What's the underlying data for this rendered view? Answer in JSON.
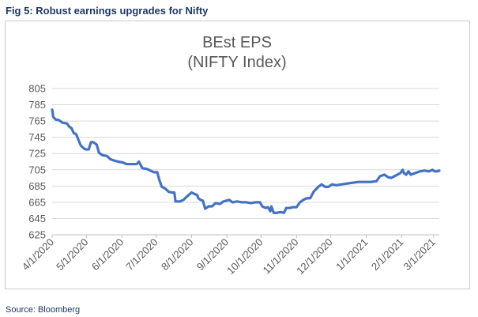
{
  "figure_title": "Fig 5: Robust earnings upgrades for Nifty",
  "source": "Source: Bloomberg",
  "chart_data": {
    "type": "line",
    "title": "BEst EPS",
    "subtitle": "(NIFTY Index)",
    "xlabel": "",
    "ylabel": "",
    "ylim": [
      625,
      805
    ],
    "y_ticks": [
      625,
      645,
      665,
      685,
      705,
      725,
      745,
      765,
      785,
      805
    ],
    "x_ticks": [
      "4/1/2020",
      "5/1/2020",
      "6/1/2020",
      "7/1/2020",
      "8/1/2020",
      "9/1/2020",
      "10/1/2020",
      "11/1/2020",
      "12/1/2020",
      "1/1/2021",
      "2/1/2021",
      "3/1/2021"
    ],
    "grid": "horizontal",
    "line_color": "#4472c4",
    "series": [
      {
        "values": [
          [
            "2020-04-01",
            779
          ],
          [
            "2020-04-02",
            770
          ],
          [
            "2020-04-04",
            767
          ],
          [
            "2020-04-07",
            766
          ],
          [
            "2020-04-10",
            763
          ],
          [
            "2020-04-14",
            762
          ],
          [
            "2020-04-16",
            758
          ],
          [
            "2020-04-18",
            756
          ],
          [
            "2020-04-20",
            750
          ],
          [
            "2020-04-22",
            749
          ],
          [
            "2020-04-24",
            742
          ],
          [
            "2020-04-26",
            735
          ],
          [
            "2020-04-29",
            731
          ],
          [
            "2020-05-01",
            730
          ],
          [
            "2020-05-03",
            730
          ],
          [
            "2020-05-05",
            739
          ],
          [
            "2020-05-07",
            739
          ],
          [
            "2020-05-10",
            736
          ],
          [
            "2020-05-12",
            726
          ],
          [
            "2020-05-15",
            723
          ],
          [
            "2020-05-19",
            722
          ],
          [
            "2020-05-22",
            718
          ],
          [
            "2020-05-26",
            716
          ],
          [
            "2020-05-29",
            715
          ],
          [
            "2020-06-02",
            714
          ],
          [
            "2020-06-05",
            712
          ],
          [
            "2020-06-10",
            712
          ],
          [
            "2020-06-14",
            712
          ],
          [
            "2020-06-16",
            715
          ],
          [
            "2020-06-19",
            707
          ],
          [
            "2020-06-23",
            706
          ],
          [
            "2020-06-26",
            704
          ],
          [
            "2020-06-29",
            702
          ],
          [
            "2020-07-02",
            702
          ],
          [
            "2020-07-04",
            692
          ],
          [
            "2020-07-06",
            684
          ],
          [
            "2020-07-09",
            682
          ],
          [
            "2020-07-12",
            678
          ],
          [
            "2020-07-15",
            677
          ],
          [
            "2020-07-17",
            677
          ],
          [
            "2020-07-18",
            666
          ],
          [
            "2020-07-22",
            666
          ],
          [
            "2020-07-25",
            668
          ],
          [
            "2020-07-28",
            672
          ],
          [
            "2020-08-01",
            677
          ],
          [
            "2020-08-04",
            675
          ],
          [
            "2020-08-06",
            674
          ],
          [
            "2020-08-07",
            670
          ],
          [
            "2020-08-09",
            668
          ],
          [
            "2020-08-11",
            667
          ],
          [
            "2020-08-13",
            657
          ],
          [
            "2020-08-16",
            660
          ],
          [
            "2020-08-19",
            660
          ],
          [
            "2020-08-22",
            664
          ],
          [
            "2020-08-26",
            663
          ],
          [
            "2020-08-29",
            666
          ],
          [
            "2020-09-03",
            668
          ],
          [
            "2020-09-06",
            665
          ],
          [
            "2020-09-10",
            666
          ],
          [
            "2020-09-14",
            665
          ],
          [
            "2020-09-18",
            665
          ],
          [
            "2020-09-22",
            664
          ],
          [
            "2020-09-26",
            665
          ],
          [
            "2020-09-30",
            665
          ],
          [
            "2020-10-02",
            660
          ],
          [
            "2020-10-05",
            658
          ],
          [
            "2020-10-07",
            659
          ],
          [
            "2020-10-09",
            654
          ],
          [
            "2020-10-10",
            660
          ],
          [
            "2020-10-12",
            652
          ],
          [
            "2020-10-15",
            652
          ],
          [
            "2020-10-18",
            653
          ],
          [
            "2020-10-21",
            652
          ],
          [
            "2020-10-23",
            658
          ],
          [
            "2020-10-26",
            658
          ],
          [
            "2020-10-29",
            659
          ],
          [
            "2020-11-01",
            659
          ],
          [
            "2020-11-04",
            665
          ],
          [
            "2020-11-07",
            668
          ],
          [
            "2020-11-10",
            670
          ],
          [
            "2020-11-13",
            670
          ],
          [
            "2020-11-16",
            678
          ],
          [
            "2020-11-20",
            684
          ],
          [
            "2020-11-23",
            687
          ],
          [
            "2020-11-26",
            684
          ],
          [
            "2020-11-29",
            684
          ],
          [
            "2020-12-02",
            687
          ],
          [
            "2020-12-06",
            686
          ],
          [
            "2020-12-10",
            687
          ],
          [
            "2020-12-15",
            688
          ],
          [
            "2020-12-20",
            689
          ],
          [
            "2020-12-25",
            690
          ],
          [
            "2020-12-31",
            690
          ],
          [
            "2021-01-05",
            690
          ],
          [
            "2021-01-10",
            691
          ],
          [
            "2021-01-13",
            697
          ],
          [
            "2021-01-17",
            699
          ],
          [
            "2021-01-20",
            696
          ],
          [
            "2021-01-23",
            695
          ],
          [
            "2021-01-27",
            698
          ],
          [
            "2021-01-31",
            701
          ],
          [
            "2021-02-02",
            705
          ],
          [
            "2021-02-03",
            701
          ],
          [
            "2021-02-05",
            699
          ],
          [
            "2021-02-07",
            703
          ],
          [
            "2021-02-09",
            699
          ],
          [
            "2021-02-13",
            701
          ],
          [
            "2021-02-17",
            703
          ],
          [
            "2021-02-21",
            704
          ],
          [
            "2021-02-25",
            703
          ],
          [
            "2021-02-28",
            705
          ],
          [
            "2021-03-02",
            703
          ],
          [
            "2021-03-04",
            703
          ],
          [
            "2021-03-06",
            704
          ]
        ]
      }
    ]
  }
}
